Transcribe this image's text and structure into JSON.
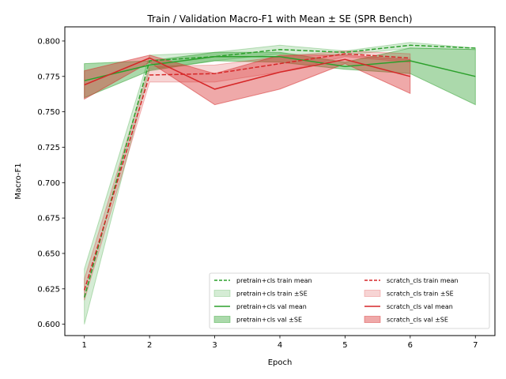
{
  "chart_data": {
    "type": "line",
    "title": "Train / Validation Macro-F1 with Mean ± SE (SPR Bench)",
    "xlabel": "Epoch",
    "ylabel": "Macro-F1",
    "xlim": [
      0.7,
      7.3
    ],
    "ylim": [
      0.592,
      0.81
    ],
    "xticks": [
      1,
      2,
      3,
      4,
      5,
      6,
      7
    ],
    "yticks": [
      0.6,
      0.625,
      0.65,
      0.675,
      0.7,
      0.725,
      0.75,
      0.775,
      0.8
    ],
    "grid": false,
    "legend_position": "lower-right",
    "series": [
      {
        "name": "pretrain+cls train mean",
        "color": "#2ca02c",
        "style": "dashed",
        "x": [
          1,
          2,
          3,
          4,
          5,
          6,
          7
        ],
        "values": [
          0.619,
          0.786,
          0.789,
          0.794,
          0.792,
          0.797,
          0.795
        ],
        "band_name": "pretrain+cls train ±SE",
        "band_opacity": 0.2,
        "lower": [
          0.6,
          0.78,
          0.786,
          0.791,
          0.79,
          0.795,
          0.794
        ],
        "upper": [
          0.639,
          0.79,
          0.792,
          0.797,
          0.793,
          0.799,
          0.795
        ]
      },
      {
        "name": "pretrain+cls val mean",
        "color": "#2ca02c",
        "style": "solid",
        "x": [
          1,
          2,
          3,
          4,
          5,
          6,
          7
        ],
        "values": [
          0.772,
          0.783,
          0.789,
          0.789,
          0.782,
          0.786,
          0.775
        ],
        "band_name": "pretrain+cls val ±SE",
        "band_opacity": 0.4,
        "lower": [
          0.76,
          0.779,
          0.786,
          0.785,
          0.78,
          0.777,
          0.755
        ],
        "upper": [
          0.784,
          0.786,
          0.792,
          0.792,
          0.785,
          0.795,
          0.794
        ]
      },
      {
        "name": "scratch_cls train mean",
        "color": "#d62728",
        "style": "dashed",
        "x": [
          1,
          2,
          3,
          4,
          5,
          6
        ],
        "values": [
          0.624,
          0.776,
          0.777,
          0.784,
          0.791,
          0.788
        ],
        "band_name": "scratch_cls train ±SE",
        "band_opacity": 0.2,
        "lower": [
          0.617,
          0.771,
          0.771,
          0.778,
          0.789,
          0.785
        ],
        "upper": [
          0.632,
          0.782,
          0.783,
          0.789,
          0.793,
          0.791
        ]
      },
      {
        "name": "scratch_cls val mean",
        "color": "#d62728",
        "style": "solid",
        "x": [
          1,
          2,
          3,
          4,
          5,
          6
        ],
        "values": [
          0.769,
          0.788,
          0.766,
          0.778,
          0.787,
          0.775
        ],
        "band_name": "scratch_cls val ±SE",
        "band_opacity": 0.4,
        "lower": [
          0.759,
          0.785,
          0.755,
          0.766,
          0.784,
          0.763
        ],
        "upper": [
          0.779,
          0.79,
          0.777,
          0.79,
          0.79,
          0.787
        ]
      }
    ],
    "legend": [
      "pretrain+cls train mean",
      "pretrain+cls train ±SE",
      "pretrain+cls val mean",
      "pretrain+cls val ±SE",
      "scratch_cls train mean",
      "scratch_cls train ±SE",
      "scratch_cls val mean",
      "scratch_cls val ±SE"
    ]
  }
}
